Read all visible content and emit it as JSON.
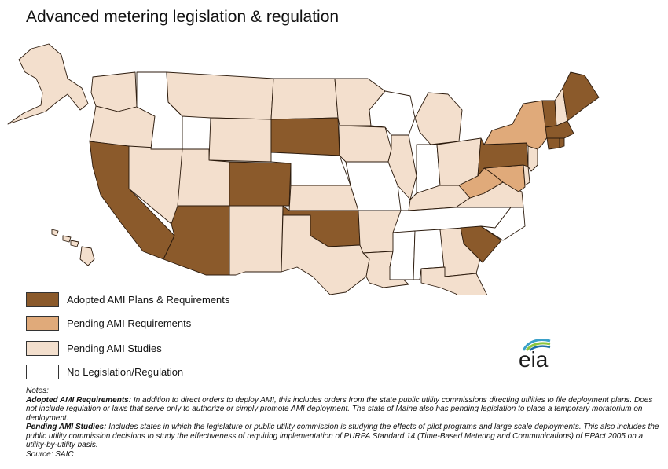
{
  "title": "Advanced metering legislation & regulation",
  "colors": {
    "adopted": "#8b5a2b",
    "pending_requirements": "#e0aa7a",
    "pending_studies": "#f3dfcd",
    "none": "#ffffff",
    "border": "#2b1a0c"
  },
  "legend": [
    {
      "key": "adopted",
      "label": "Adopted AMI Plans & Requirements"
    },
    {
      "key": "pending_requirements",
      "label": "Pending AMI Requirements"
    },
    {
      "key": "pending_studies",
      "label": "Pending AMI Studies"
    },
    {
      "key": "none",
      "label": "No Legislation/Regulation"
    }
  ],
  "states": {
    "WA": "pending_studies",
    "OR": "pending_studies",
    "CA": "adopted",
    "NV": "pending_studies",
    "ID": "none",
    "MT": "pending_studies",
    "WY": "pending_studies",
    "UT": "pending_studies",
    "AZ": "adopted",
    "CO": "adopted",
    "NM": "pending_studies",
    "ND": "pending_studies",
    "SD": "adopted",
    "NE": "none",
    "KS": "pending_studies",
    "OK": "adopted",
    "TX": "pending_studies",
    "MN": "pending_studies",
    "IA": "pending_studies",
    "MO": "none",
    "AR": "pending_studies",
    "LA": "pending_studies",
    "WI": "none",
    "IL": "pending_studies",
    "MI": "pending_studies",
    "IN": "none",
    "OH": "pending_studies",
    "KY": "pending_studies",
    "TN": "none",
    "MS": "none",
    "AL": "none",
    "GA": "pending_studies",
    "FL": "pending_studies",
    "SC": "adopted",
    "NC": "none",
    "VA": "pending_studies",
    "WV": "pending_requirements",
    "MD": "pending_requirements",
    "DE": "pending_studies",
    "NJ": "pending_studies",
    "PA": "adopted",
    "NY": "pending_requirements",
    "VT": "adopted",
    "NH": "pending_studies",
    "ME": "adopted",
    "MA": "adopted",
    "CT": "adopted",
    "RI": "adopted",
    "AK": "pending_studies",
    "HI": "pending_studies"
  },
  "logo": {
    "text": "eia",
    "icon": "eia-logo-icon"
  },
  "notes": {
    "heading": "Notes:",
    "adopted_label": "Adopted AMI Requirements:",
    "adopted_text": " In addition to direct orders to deploy AMI, this includes orders from the state public utility commissions directing utilities to file deployment plans.  Does not include regulation or laws that serve only to authorize or simply promote AMI deployment.  The state of Maine also has pending legislation to place a temporary moratorium on deployment.",
    "studies_label": "Pending AMI Studies:",
    "studies_text": " Includes states in which the legislature or public utility commission is studying the effects of pilot programs and large scale deployments.  This also includes the public utility commission decisions to study the effectiveness of requiring implementation of PURPA Standard 14 (Time-Based Metering and Communications) of EPAct 2005 on a utility-by-utility basis.",
    "source": "Source: SAIC"
  }
}
